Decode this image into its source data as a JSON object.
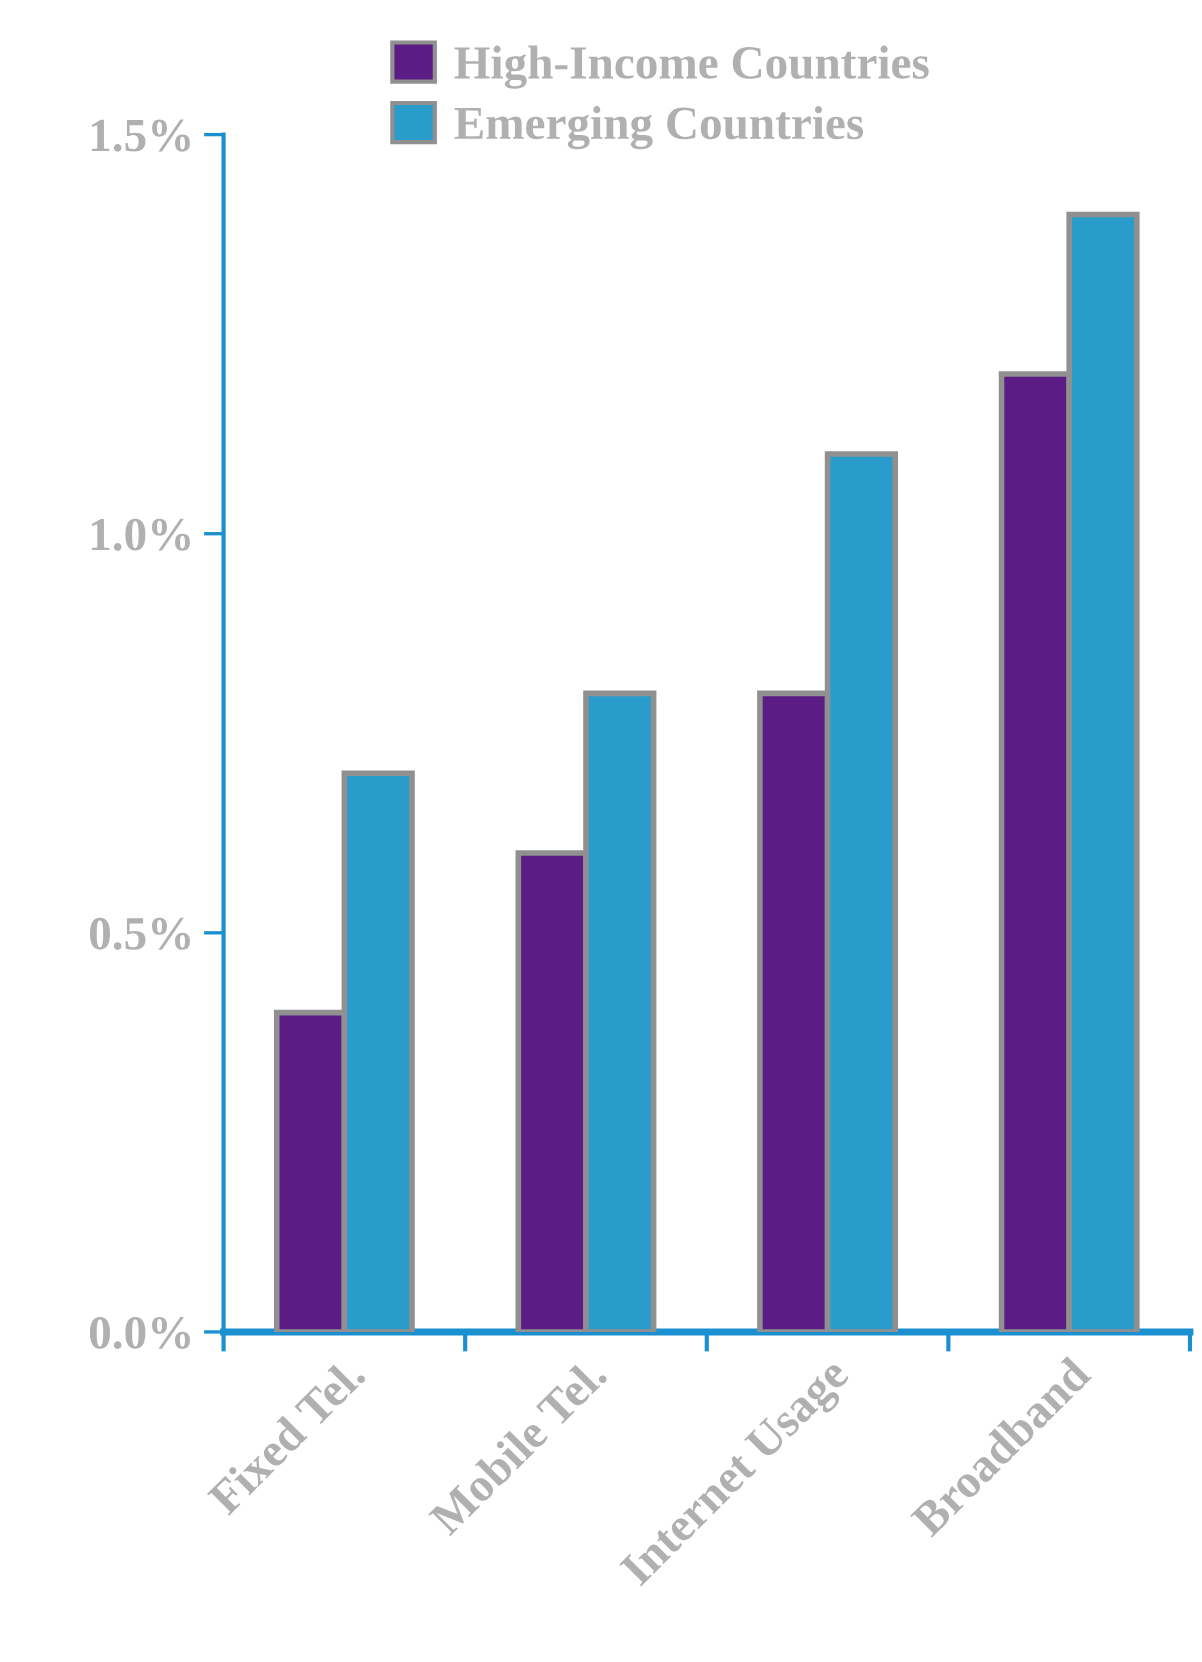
{
  "chart_data": {
    "type": "bar",
    "categories": [
      "Fixed Tel.",
      "Mobile Tel.",
      "Internet Usage",
      "Broadband"
    ],
    "series": [
      {
        "name": "High-Income Countries",
        "color": "#5b1d85",
        "values": [
          0.4,
          0.6,
          0.8,
          1.2
        ]
      },
      {
        "name": "Emerging Countries",
        "color": "#2a9ccb",
        "values": [
          0.7,
          0.8,
          1.1,
          1.4
        ]
      }
    ],
    "ylim": [
      0,
      1.5
    ],
    "yticks": [
      {
        "value": 0,
        "label": "0.0%"
      },
      {
        "value": 0.5,
        "label": "0.5%"
      },
      {
        "value": 1.0,
        "label": "1.0%"
      },
      {
        "value": 1.5,
        "label": "1.5%"
      }
    ],
    "legend": "top",
    "grid": false
  }
}
